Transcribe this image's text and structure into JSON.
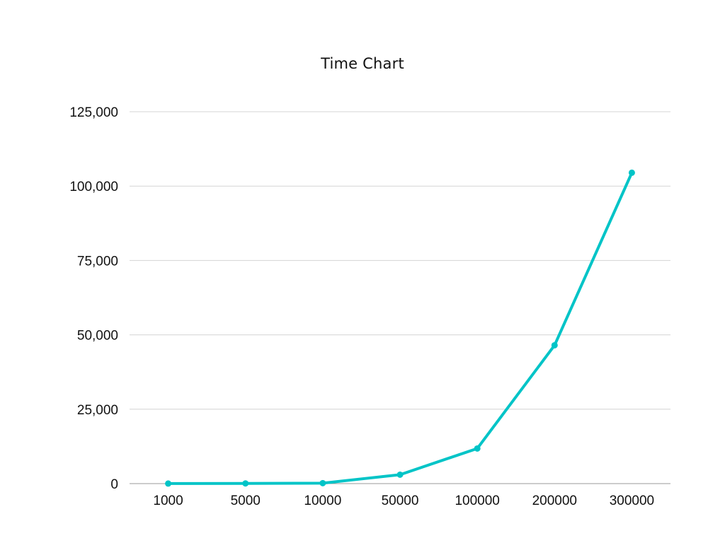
{
  "chart_data": {
    "type": "line",
    "title": "Time Chart",
    "xlabel": "",
    "ylabel": "",
    "categories": [
      "1000",
      "5000",
      "10000",
      "50000",
      "100000",
      "200000",
      "300000"
    ],
    "series": [
      {
        "values": [
          20,
          60,
          150,
          3000,
          11800,
          46500,
          104500
        ]
      }
    ],
    "ylim": [
      0,
      125000
    ],
    "yticks": [
      0,
      25000,
      50000,
      75000,
      100000,
      125000
    ],
    "ytick_labels": [
      "0",
      "25,000",
      "50,000",
      "75,000",
      "100,000",
      "125,000"
    ],
    "grid": true,
    "legend": "none",
    "colors": {
      "line": "#00C4C7",
      "grid": "#d4d4d4",
      "axis": "#999999",
      "text": "#111111"
    }
  }
}
